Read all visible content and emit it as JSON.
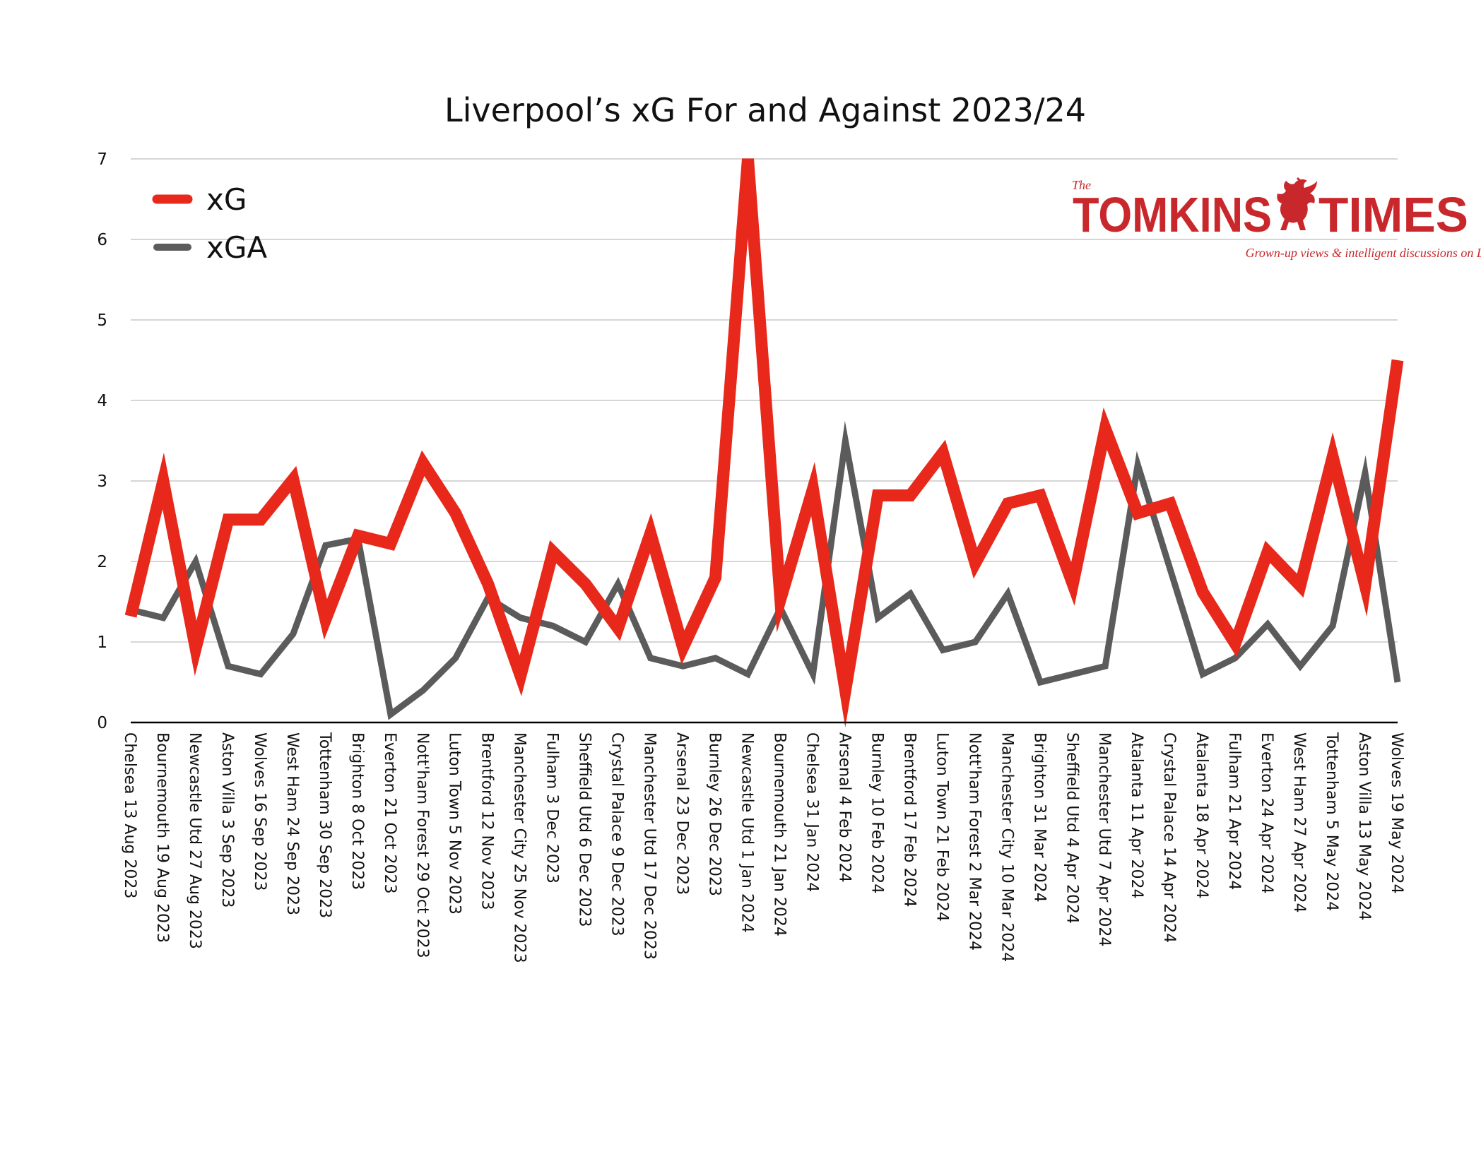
{
  "chart_data": {
    "type": "line",
    "title": "Liverpool’s xG For and Against 2023/24",
    "categories": [
      "Chelsea 13 Aug 2023",
      "Bournemouth 19 Aug 2023",
      "Newcastle Utd 27 Aug 2023",
      "Aston Villa 3 Sep 2023",
      "Wolves 16 Sep 2023",
      "West Ham 24 Sep 2023",
      "Tottenham 30 Sep 2023",
      "Brighton 8 Oct 2023",
      "Everton 21 Oct 2023",
      "Nott'ham Forest 29 Oct 2023",
      "Luton Town 5 Nov 2023",
      "Brentford 12 Nov 2023",
      "Manchester City 25 Nov 2023",
      "Fulham 3 Dec 2023",
      "Sheffield Utd 6 Dec 2023",
      "Crystal Palace 9 Dec 2023",
      "Manchester Utd 17 Dec 2023",
      "Arsenal 23 Dec 2023",
      "Burnley 26 Dec 2023",
      "Newcastle Utd 1 Jan 2024",
      "Bournemouth 21 Jan 2024",
      "Chelsea 31 Jan 2024",
      "Arsenal 4 Feb 2024",
      "Burnley 10 Feb 2024",
      "Brentford 17 Feb 2024",
      "Luton Town 21 Feb 2024",
      "Nott'ham Forest 2 Mar 2024",
      "Manchester City 10 Mar 2024",
      "Brighton 31 Mar 2024",
      "Sheffield Utd 4 Apr 2024",
      "Manchester Utd 7 Apr 2024",
      "Atalanta 11 Apr 2024",
      "Crystal Palace 14 Apr 2024",
      "Atalanta 18 Apr 2024",
      "Fulham 21 Apr 2024",
      "Everton 24 Apr 2024",
      "West Ham 27 Apr 2024",
      "Tottenham 5 May 2024",
      "Aston Villa 13 May 2024",
      "Wolves 19 May 2024"
    ],
    "series": [
      {
        "name": "xG",
        "color": "#e8281a",
        "values": [
          1.32,
          3.0,
          0.92,
          2.52,
          2.52,
          3.02,
          1.28,
          2.32,
          2.22,
          3.22,
          2.6,
          1.72,
          0.58,
          2.12,
          1.72,
          1.17,
          2.35,
          0.93,
          1.8,
          7.0,
          1.53,
          2.9,
          0.4,
          2.82,
          2.82,
          3.35,
          1.98,
          2.72,
          2.82,
          1.72,
          3.65,
          2.6,
          2.72,
          1.62,
          0.98,
          2.12,
          1.7,
          3.3,
          1.7,
          4.5
        ]
      },
      {
        "name": "xGA",
        "color": "#5b5b5b",
        "values": [
          1.4,
          1.3,
          2.0,
          0.7,
          0.6,
          1.1,
          2.2,
          2.28,
          0.1,
          0.4,
          0.8,
          1.55,
          1.3,
          1.2,
          1.0,
          1.72,
          0.8,
          0.7,
          0.8,
          0.6,
          1.42,
          0.6,
          3.5,
          1.3,
          1.6,
          0.9,
          1.0,
          1.6,
          0.5,
          0.6,
          0.7,
          3.2,
          1.9,
          0.6,
          0.8,
          1.22,
          0.7,
          1.2,
          3.1,
          0.5
        ]
      }
    ],
    "ylim": [
      0,
      7
    ],
    "yticks": [
      0,
      1,
      2,
      3,
      4,
      5,
      6,
      7
    ],
    "grid": true,
    "legend_position": "top-left"
  },
  "brand": {
    "prefix": "The",
    "word_left": "TOMKINS",
    "word_right": "TIMES",
    "tagline": "Grown-up views & intelligent discussions on Liverpool FC",
    "color": "#c8282c",
    "icon": "liverbird-icon"
  }
}
